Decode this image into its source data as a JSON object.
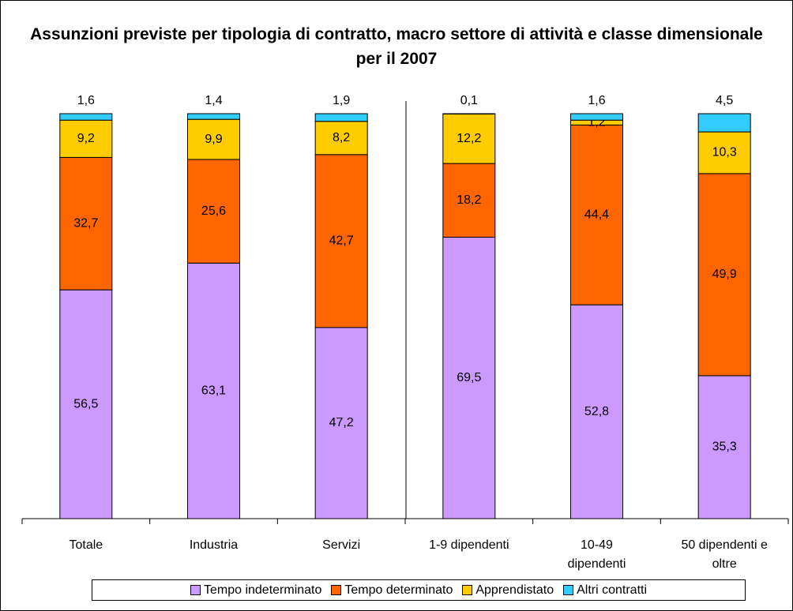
{
  "chart_data": {
    "type": "stacked_bar",
    "title": "Assunzioni previste per tipologia di contratto, macro settore di attività e classe dimensionale per il 2007",
    "categories": [
      "Totale",
      "Industria",
      "Servizi",
      "1-9 dipendenti",
      "10-49 dipendenti",
      "50 dipendenti e oltre"
    ],
    "series": [
      {
        "name": "Tempo indeterminato",
        "color": "#cc99ff",
        "values": [
          56.5,
          63.1,
          47.2,
          69.5,
          52.8,
          35.3
        ],
        "value_labels": [
          "56,5",
          "63,1",
          "47,2",
          "69,5",
          "52,8",
          "35,3"
        ]
      },
      {
        "name": "Tempo determinato",
        "color": "#ff6600",
        "values": [
          32.7,
          25.6,
          42.7,
          18.2,
          44.4,
          49.9
        ],
        "value_labels": [
          "32,7",
          "25,6",
          "42,7",
          "18,2",
          "44,4",
          "49,9"
        ]
      },
      {
        "name": "Apprendistato",
        "color": "#ffcc00",
        "values": [
          9.2,
          9.9,
          8.2,
          12.2,
          1.2,
          10.3
        ],
        "value_labels": [
          "9,2",
          "9,9",
          "8,2",
          "12,2",
          "1,2",
          "10,3"
        ]
      },
      {
        "name": "Altri contratti",
        "color": "#33ccff",
        "values": [
          1.6,
          1.4,
          1.9,
          0.1,
          1.6,
          4.5
        ],
        "value_labels": [
          "1,6",
          "1,4",
          "1,9",
          "0,1",
          "1,6",
          "4,5"
        ]
      }
    ],
    "ylim": [
      0,
      100
    ],
    "legend": "bottom"
  }
}
